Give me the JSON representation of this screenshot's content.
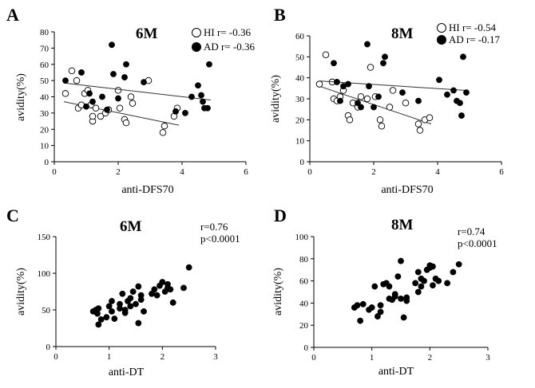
{
  "colors": {
    "ink": "#000000",
    "open_fill": "#ffffff",
    "closed_fill": "#000000",
    "regression": "#333333"
  },
  "chart_data": [
    {
      "panel": "A",
      "type": "scatter",
      "title": "6M",
      "xlabel": "anti-DFS70",
      "ylabel": "avidity(%)",
      "xlim": [
        0,
        6
      ],
      "ylim": [
        0,
        80
      ],
      "xticks": [
        0,
        2,
        4,
        6
      ],
      "yticks": [
        0,
        10,
        20,
        30,
        40,
        50,
        60,
        70,
        80
      ],
      "grid": false,
      "legend": "top-right",
      "series": [
        {
          "name": "HI",
          "stat": "r= -0.36",
          "marker": "open-circle",
          "points": [
            [
              0.35,
              42
            ],
            [
              0.55,
              56
            ],
            [
              0.7,
              50
            ],
            [
              0.75,
              33
            ],
            [
              0.85,
              35
            ],
            [
              0.95,
              42
            ],
            [
              1.05,
              44
            ],
            [
              1.15,
              35
            ],
            [
              1.2,
              25
            ],
            [
              1.2,
              28
            ],
            [
              1.3,
              33
            ],
            [
              1.45,
              28
            ],
            [
              1.6,
              30
            ],
            [
              1.7,
              32
            ],
            [
              2.0,
              44
            ],
            [
              2.05,
              33
            ],
            [
              2.2,
              26
            ],
            [
              2.25,
              24
            ],
            [
              2.4,
              40
            ],
            [
              2.45,
              36
            ],
            [
              2.95,
              50
            ],
            [
              3.4,
              18
            ],
            [
              3.45,
              22
            ],
            [
              3.75,
              28
            ],
            [
              3.85,
              33
            ]
          ],
          "regression": {
            "x": [
              0.3,
              3.9
            ],
            "y": [
              37.0,
              22.5
            ]
          }
        },
        {
          "name": "AD",
          "stat": "r= -0.36",
          "marker": "filled-circle",
          "points": [
            [
              0.35,
              50
            ],
            [
              0.85,
              55
            ],
            [
              1.0,
              34
            ],
            [
              1.1,
              42
            ],
            [
              1.2,
              37
            ],
            [
              1.5,
              40
            ],
            [
              1.65,
              32
            ],
            [
              1.8,
              72
            ],
            [
              1.85,
              54
            ],
            [
              2.0,
              39
            ],
            [
              2.2,
              52
            ],
            [
              2.25,
              60
            ],
            [
              2.8,
              49
            ],
            [
              3.8,
              31
            ],
            [
              4.1,
              30
            ],
            [
              4.3,
              40
            ],
            [
              4.5,
              47
            ],
            [
              4.6,
              41
            ],
            [
              4.65,
              37
            ],
            [
              4.7,
              33
            ],
            [
              4.8,
              33
            ],
            [
              4.85,
              60
            ]
          ],
          "regression": {
            "x": [
              0.3,
              4.9
            ],
            "y": [
              48.5,
              38.0
            ]
          }
        }
      ]
    },
    {
      "panel": "B",
      "type": "scatter",
      "title": "8M",
      "xlabel": "anti-DFS70",
      "ylabel": "avidity(%)",
      "xlim": [
        0,
        6
      ],
      "ylim": [
        0,
        60
      ],
      "xticks": [
        0,
        2,
        4,
        6
      ],
      "yticks": [
        0,
        10,
        20,
        30,
        40,
        50,
        60
      ],
      "grid": false,
      "legend": "top-right",
      "series": [
        {
          "name": "HI",
          "stat": "r= -0.54",
          "marker": "open-circle",
          "points": [
            [
              0.3,
              37
            ],
            [
              0.5,
              51
            ],
            [
              0.7,
              38
            ],
            [
              0.75,
              30
            ],
            [
              0.85,
              29
            ],
            [
              0.95,
              31
            ],
            [
              1.05,
              34
            ],
            [
              1.2,
              22
            ],
            [
              1.25,
              20
            ],
            [
              1.35,
              28
            ],
            [
              1.5,
              26
            ],
            [
              1.6,
              31
            ],
            [
              1.8,
              30
            ],
            [
              1.9,
              45
            ],
            [
              2.05,
              31
            ],
            [
              2.2,
              20
            ],
            [
              2.25,
              17
            ],
            [
              2.5,
              26
            ],
            [
              2.6,
              34
            ],
            [
              3.0,
              28
            ],
            [
              3.4,
              18
            ],
            [
              3.45,
              15
            ],
            [
              3.6,
              20
            ],
            [
              3.75,
              21
            ]
          ],
          "regression": {
            "x": [
              0.3,
              3.8
            ],
            "y": [
              36.0,
              18.0
            ]
          }
        },
        {
          "name": "AD",
          "stat": "AD r= -0.17",
          "marker": "filled-circle",
          "points": [
            [
              0.75,
              47
            ],
            [
              0.85,
              38
            ],
            [
              0.95,
              29
            ],
            [
              1.05,
              36
            ],
            [
              1.2,
              37
            ],
            [
              1.5,
              28
            ],
            [
              1.6,
              26
            ],
            [
              1.8,
              56
            ],
            [
              1.85,
              36
            ],
            [
              2.0,
              26
            ],
            [
              2.15,
              31
            ],
            [
              2.3,
              47
            ],
            [
              2.35,
              50
            ],
            [
              2.9,
              33
            ],
            [
              3.4,
              29
            ],
            [
              4.05,
              39
            ],
            [
              4.3,
              32
            ],
            [
              4.5,
              34
            ],
            [
              4.6,
              29
            ],
            [
              4.7,
              28
            ],
            [
              4.75,
              22
            ],
            [
              4.8,
              50
            ],
            [
              4.9,
              33
            ]
          ],
          "regression": {
            "x": [
              0.3,
              4.9
            ],
            "y": [
              38.5,
              34.0
            ]
          }
        }
      ]
    },
    {
      "panel": "C",
      "type": "scatter",
      "title": "6M",
      "stats": [
        "r=0.76",
        "p<0.0001"
      ],
      "xlabel": "anti-DT",
      "ylabel": "avidity(%)",
      "xlim": [
        0,
        3
      ],
      "ylim": [
        0,
        150
      ],
      "xticks": [
        0,
        1,
        2,
        3
      ],
      "yticks": [
        0,
        50,
        100,
        150
      ],
      "grid": false,
      "series": [
        {
          "marker": "filled-circle",
          "points": [
            [
              0.7,
              48
            ],
            [
              0.75,
              50
            ],
            [
              0.78,
              45
            ],
            [
              0.8,
              52
            ],
            [
              0.8,
              30
            ],
            [
              0.85,
              37
            ],
            [
              0.95,
              40
            ],
            [
              1.0,
              55
            ],
            [
              1.05,
              48
            ],
            [
              1.05,
              62
            ],
            [
              1.1,
              38
            ],
            [
              1.2,
              52
            ],
            [
              1.2,
              58
            ],
            [
              1.25,
              72
            ],
            [
              1.3,
              46
            ],
            [
              1.3,
              50
            ],
            [
              1.35,
              62
            ],
            [
              1.4,
              55
            ],
            [
              1.4,
              66
            ],
            [
              1.45,
              75
            ],
            [
              1.5,
              58
            ],
            [
              1.55,
              82
            ],
            [
              1.6,
              64
            ],
            [
              1.65,
              48
            ],
            [
              1.55,
              32
            ],
            [
              1.6,
              70
            ],
            [
              1.8,
              72
            ],
            [
              1.85,
              78
            ],
            [
              1.9,
              70
            ],
            [
              1.95,
              83
            ],
            [
              2.0,
              88
            ],
            [
              2.05,
              75
            ],
            [
              2.1,
              85
            ],
            [
              2.1,
              80
            ],
            [
              2.15,
              78
            ],
            [
              2.2,
              60
            ],
            [
              2.4,
              80
            ],
            [
              2.5,
              108
            ]
          ]
        }
      ]
    },
    {
      "panel": "D",
      "type": "scatter",
      "title": "8M",
      "stats": [
        "r=0.74",
        "p<0.0001"
      ],
      "xlabel": "anti-DT",
      "ylabel": "avidity(%)",
      "xlim": [
        0,
        3
      ],
      "ylim": [
        0,
        100
      ],
      "xticks": [
        0,
        1,
        2,
        3
      ],
      "yticks": [
        0,
        20,
        40,
        60,
        80,
        100
      ],
      "grid": false,
      "series": [
        {
          "marker": "filled-circle",
          "points": [
            [
              0.7,
              36
            ],
            [
              0.75,
              38
            ],
            [
              0.8,
              24
            ],
            [
              0.85,
              39
            ],
            [
              0.95,
              34
            ],
            [
              1.0,
              36
            ],
            [
              1.05,
              55
            ],
            [
              1.1,
              28
            ],
            [
              1.15,
              32
            ],
            [
              1.15,
              38
            ],
            [
              1.2,
              57
            ],
            [
              1.25,
              58
            ],
            [
              1.3,
              55
            ],
            [
              1.3,
              44
            ],
            [
              1.35,
              43
            ],
            [
              1.4,
              48
            ],
            [
              1.4,
              46
            ],
            [
              1.45,
              64
            ],
            [
              1.5,
              78
            ],
            [
              1.5,
              44
            ],
            [
              1.55,
              27
            ],
            [
              1.6,
              42
            ],
            [
              1.6,
              45
            ],
            [
              1.75,
              58
            ],
            [
              1.8,
              50
            ],
            [
              1.8,
              68
            ],
            [
              1.85,
              62
            ],
            [
              1.85,
              55
            ],
            [
              1.9,
              60
            ],
            [
              1.95,
              70
            ],
            [
              2.0,
              72
            ],
            [
              2.0,
              74
            ],
            [
              2.05,
              73
            ],
            [
              2.05,
              56
            ],
            [
              2.1,
              62
            ],
            [
              2.15,
              60
            ],
            [
              2.4,
              68
            ],
            [
              2.5,
              75
            ],
            [
              2.3,
              58
            ]
          ]
        }
      ]
    }
  ]
}
